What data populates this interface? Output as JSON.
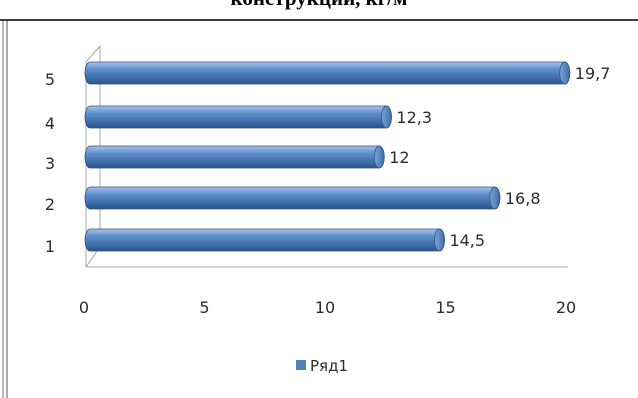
{
  "page": {
    "title": "конструкций, кг/м"
  },
  "chart_data": {
    "type": "bar",
    "orientation": "horizontal",
    "style": "3d-cylinder",
    "categories": [
      "1",
      "2",
      "3",
      "4",
      "5"
    ],
    "series": [
      {
        "name": "Ряд1",
        "values": [
          14.5,
          16.8,
          12,
          12.3,
          19.7
        ],
        "color": "#4f81bd"
      }
    ],
    "data_labels": [
      "14,5",
      "16,8",
      "12",
      "12,3",
      "19,7"
    ],
    "x_ticks": [
      "0",
      "5",
      "10",
      "15",
      "20"
    ],
    "xlim": [
      0,
      20
    ],
    "title": "",
    "xlabel": "",
    "ylabel": "",
    "legend": {
      "position": "bottom",
      "entries": [
        "Ряд1"
      ]
    },
    "grid": false
  }
}
